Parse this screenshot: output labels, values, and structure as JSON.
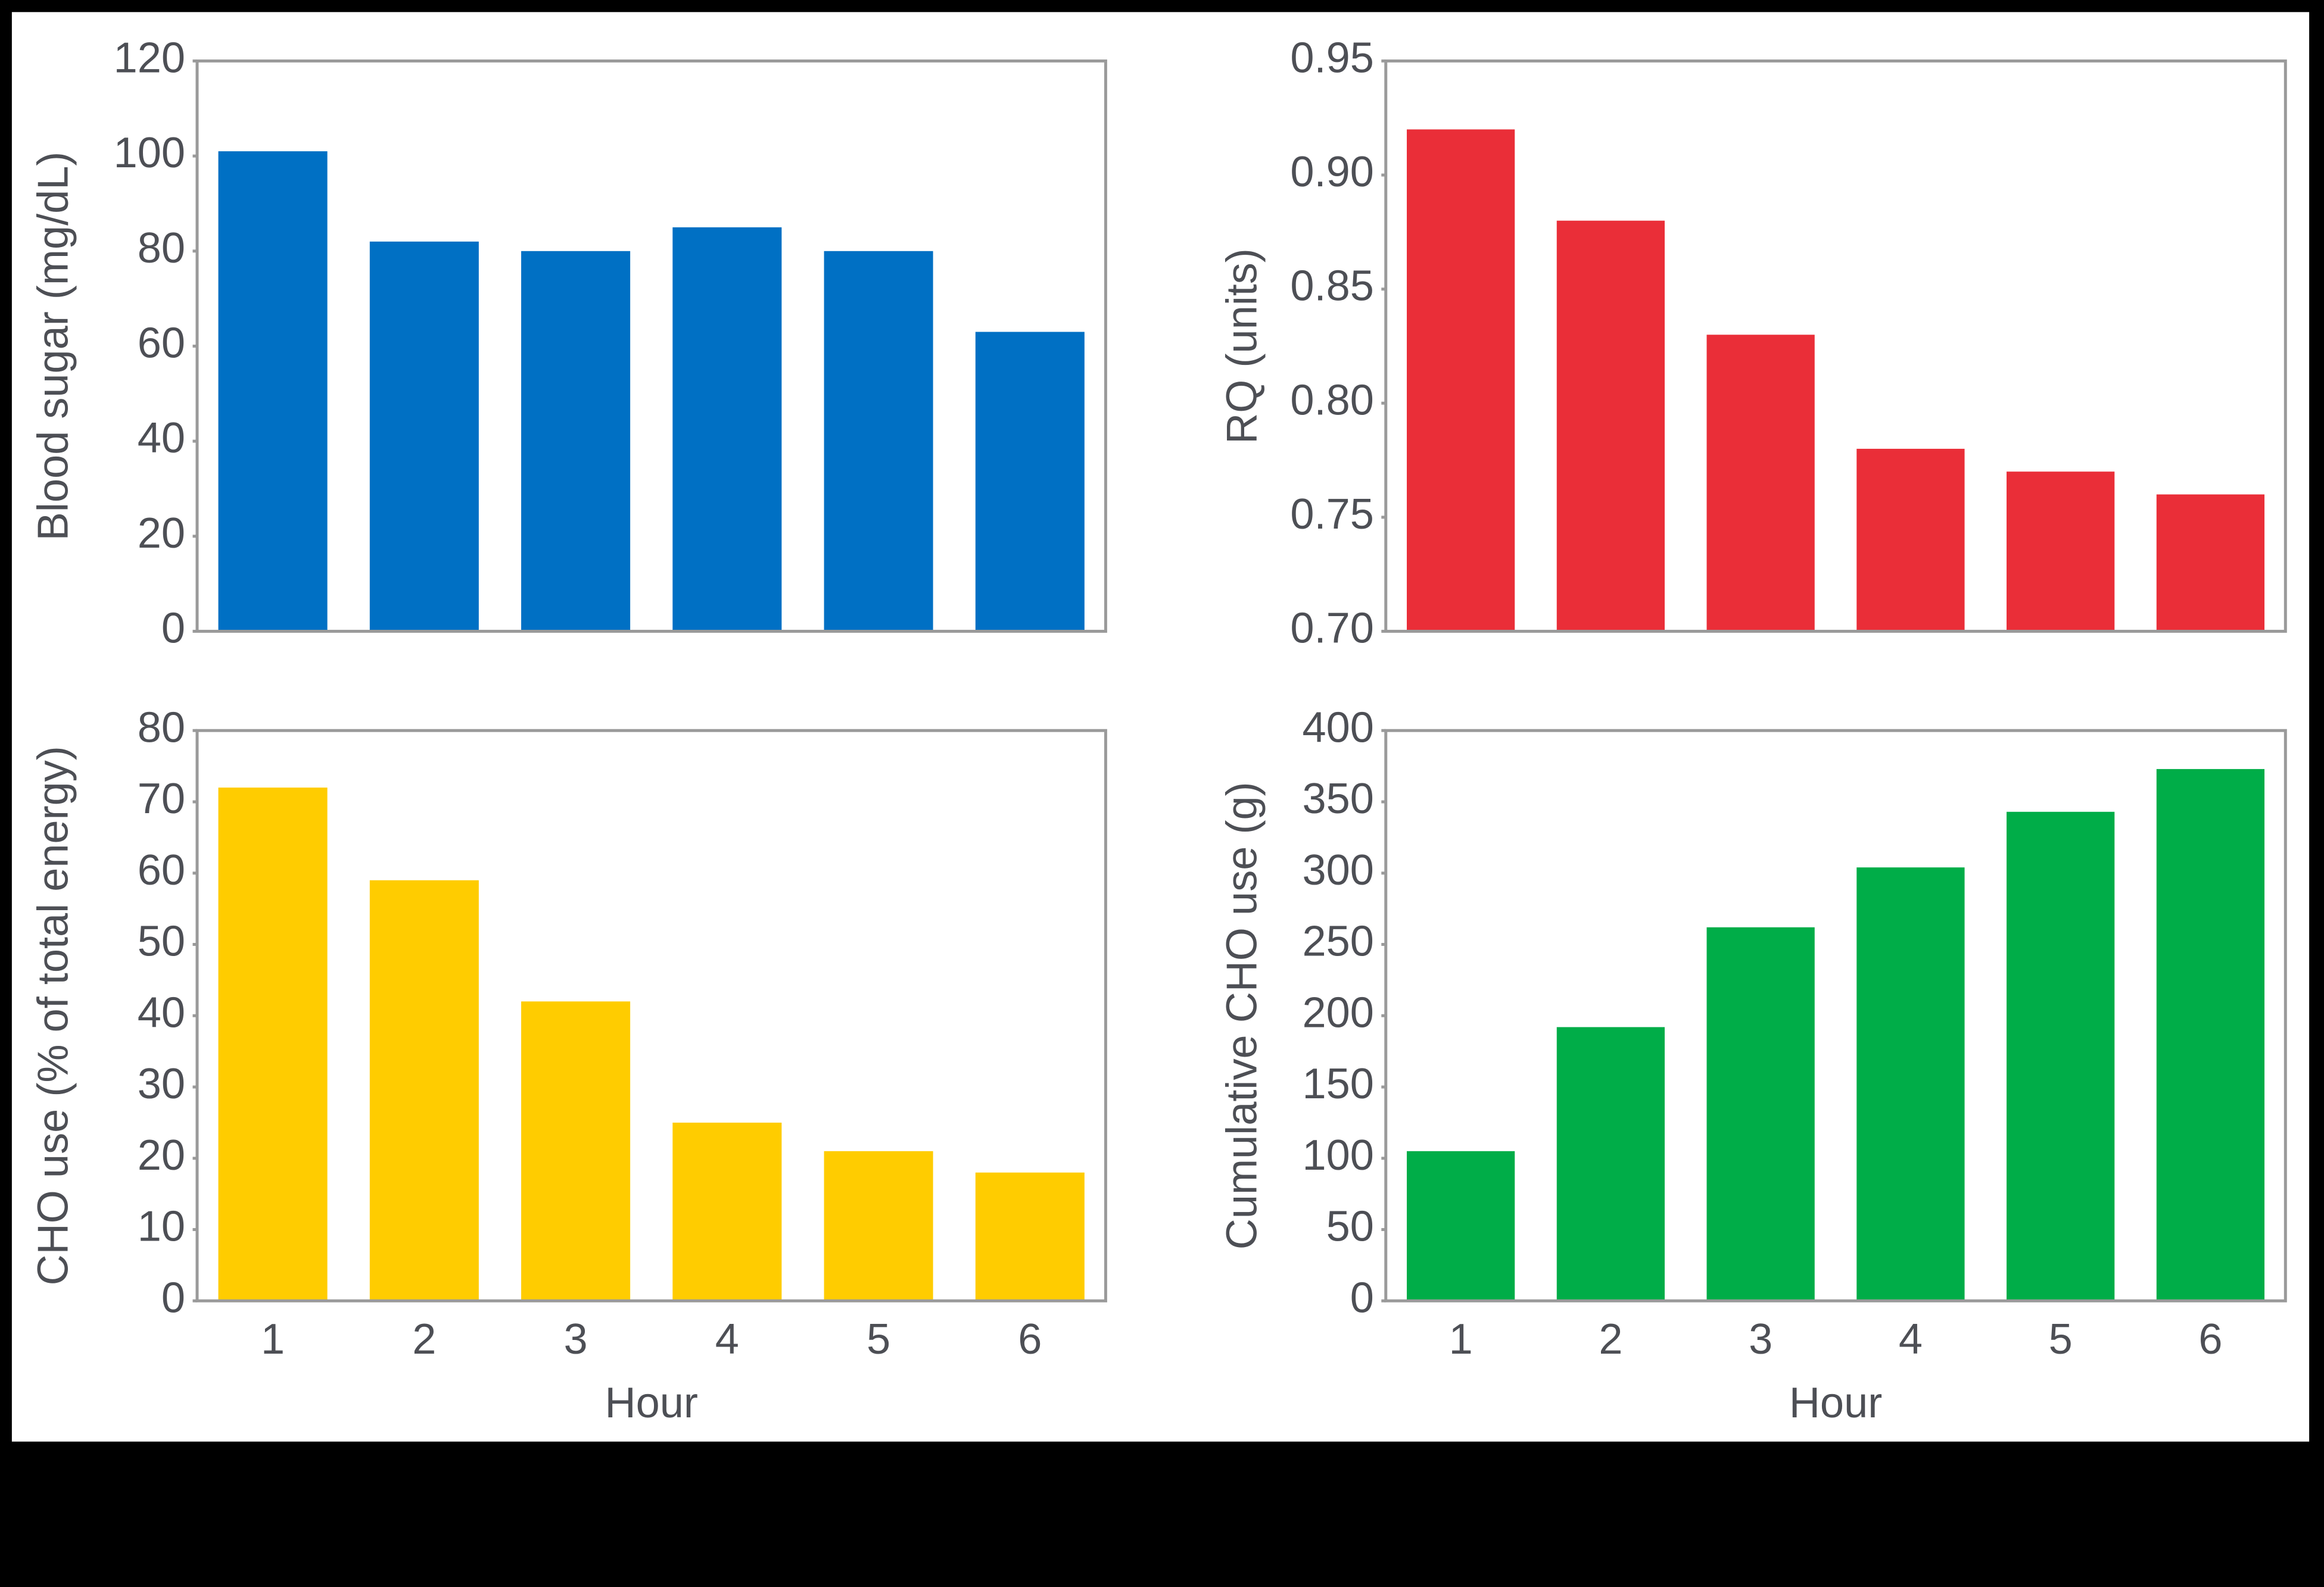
{
  "chart_data": [
    {
      "type": "bar",
      "ylabel": "Blood sugar (mg/dL)",
      "values": [
        101,
        82,
        80,
        85,
        80,
        63
      ],
      "color": "#0070c4",
      "ylim": [
        0,
        120
      ],
      "yticks": [
        0,
        20,
        40,
        60,
        80,
        100,
        120
      ]
    },
    {
      "type": "bar",
      "ylabel": "RQ (units)",
      "values": [
        0.92,
        0.88,
        0.83,
        0.78,
        0.77,
        0.76
      ],
      "color": "#ea2e38",
      "ylim": [
        0.7,
        0.95
      ],
      "yticks": [
        {
          "value": 0.7,
          "label": "0.70"
        },
        0.75,
        {
          "value": 0.8,
          "label": "0.80"
        },
        0.85,
        {
          "value": 0.9,
          "label": "0.90"
        },
        0.95
      ]
    },
    {
      "type": "bar",
      "ylabel": "CHO use (% of total energy)",
      "xlabel": "Hour",
      "categories": [
        "1",
        "2",
        "3",
        "4",
        "5",
        "6"
      ],
      "values": [
        72,
        59,
        42,
        25,
        21,
        18
      ],
      "color": "#ffcc00",
      "ylim": [
        0,
        80
      ],
      "yticks": [
        0,
        10,
        20,
        30,
        40,
        50,
        60,
        70,
        80
      ]
    },
    {
      "type": "bar",
      "ylabel": "Cumulative CHO use (g)",
      "xlabel": "Hour",
      "categories": [
        "1",
        "2",
        "3",
        "4",
        "5",
        "6"
      ],
      "values": [
        105,
        192,
        262,
        304,
        343,
        373
      ],
      "color": "#00ad48",
      "ylim": [
        0,
        400
      ],
      "yticks": [
        0,
        50,
        100,
        150,
        200,
        250,
        300,
        350,
        400
      ]
    }
  ]
}
